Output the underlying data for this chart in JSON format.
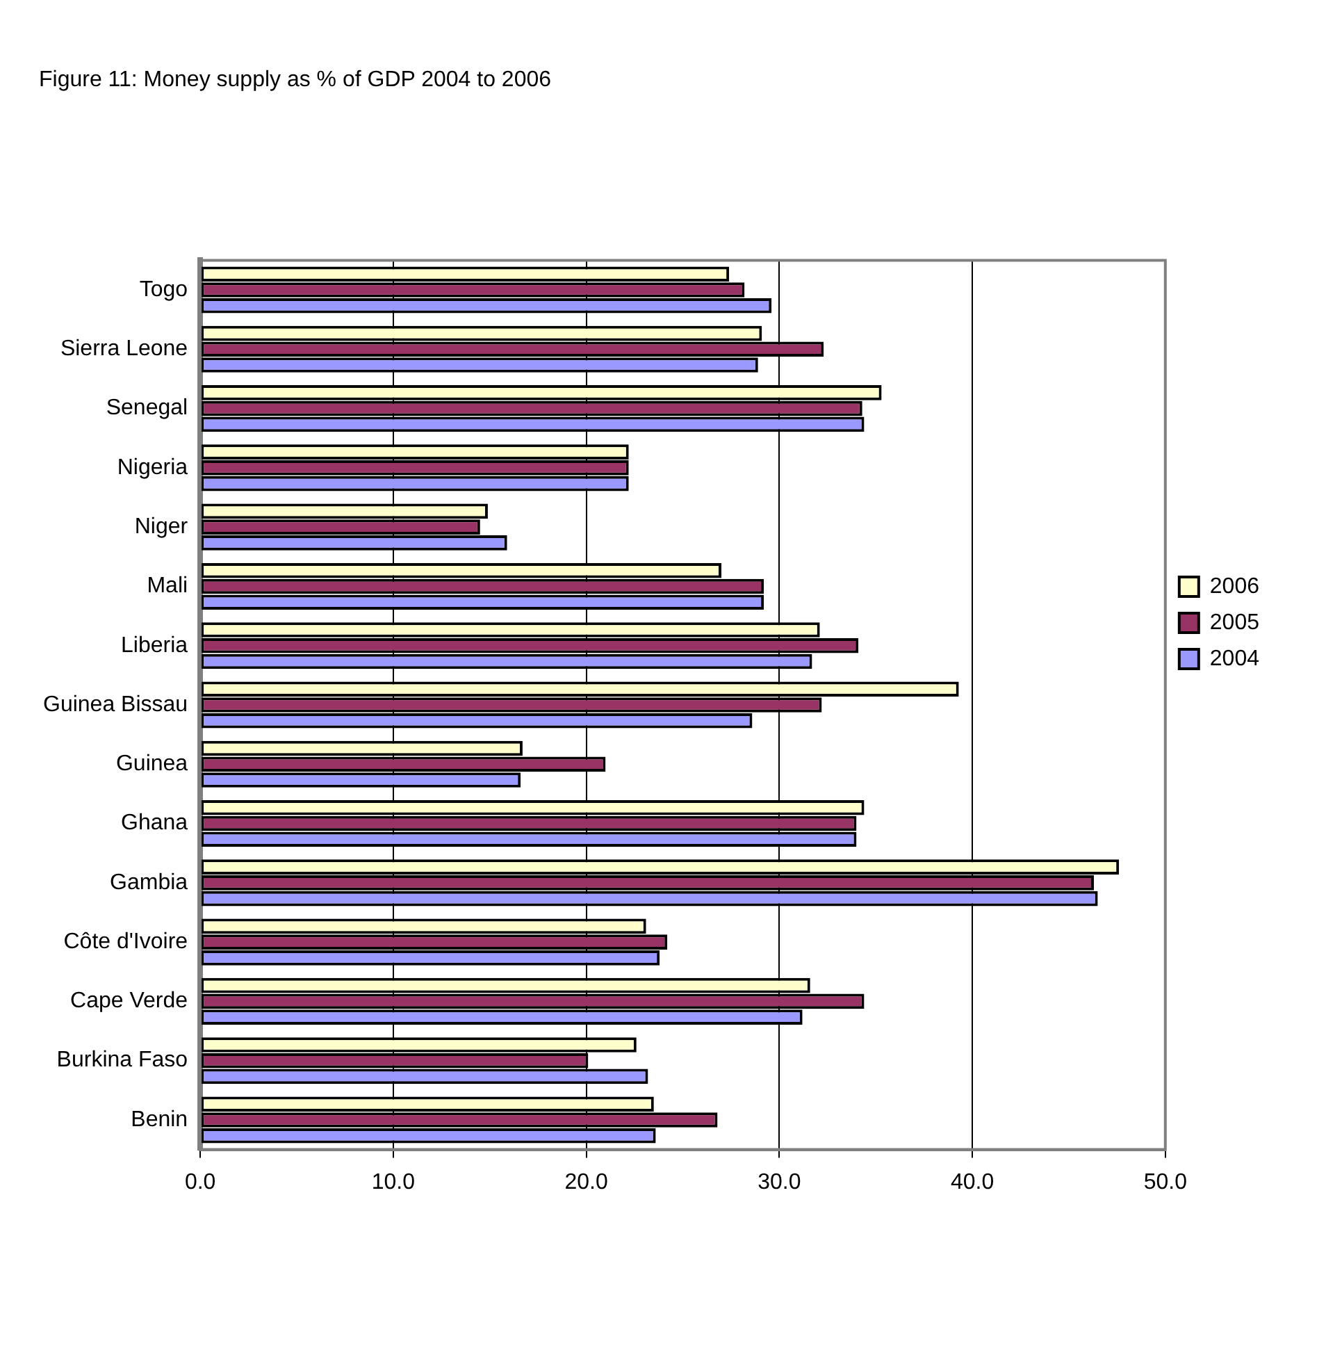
{
  "chart_data": {
    "type": "bar",
    "orientation": "horizontal",
    "title": "Figure 11: Money supply as % of GDP 2004 to 2006",
    "categories": [
      "Togo",
      "Sierra Leone",
      "Senegal",
      "Nigeria",
      "Niger",
      "Mali",
      "Liberia",
      "Guinea Bissau",
      "Guinea",
      "Ghana",
      "Gambia",
      "Côte d'Ivoire",
      "Cape Verde",
      "Burkina Faso",
      "Benin"
    ],
    "series": [
      {
        "name": "2006",
        "color": "#ffffcc",
        "values": [
          27.4,
          29.1,
          35.3,
          22.2,
          14.9,
          27.0,
          32.1,
          39.3,
          16.7,
          34.4,
          47.6,
          23.1,
          31.6,
          22.6,
          23.5
        ]
      },
      {
        "name": "2005",
        "color": "#993366",
        "values": [
          28.2,
          32.3,
          34.3,
          22.2,
          14.5,
          29.2,
          34.1,
          32.2,
          21.0,
          34.0,
          46.3,
          24.2,
          34.4,
          20.1,
          26.8
        ]
      },
      {
        "name": "2004",
        "color": "#9999ff",
        "values": [
          29.6,
          28.9,
          34.4,
          22.2,
          15.9,
          29.2,
          31.7,
          28.6,
          16.6,
          34.0,
          46.5,
          23.8,
          31.2,
          23.2,
          23.6
        ]
      }
    ],
    "xlim": [
      0,
      50
    ],
    "xticks": [
      {
        "value": 0,
        "label": "0.0"
      },
      {
        "value": 10,
        "label": "10.0"
      },
      {
        "value": 20,
        "label": "20.0"
      },
      {
        "value": 30,
        "label": "30.0"
      },
      {
        "value": 40,
        "label": "40.0"
      },
      {
        "value": 50,
        "label": "50.0"
      }
    ],
    "grid": "x",
    "legend": "right"
  }
}
